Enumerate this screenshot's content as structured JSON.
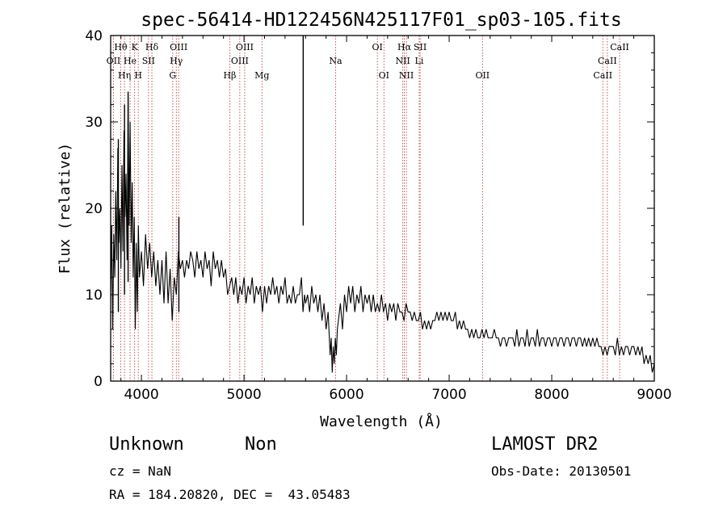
{
  "chart_data": {
    "type": "line",
    "title": "spec-56414-HD122456N425117F01_sp03-105.fits",
    "xlabel": "Wavelength (Å)",
    "ylabel": "Flux (relative)",
    "xlim": [
      3700,
      9000
    ],
    "ylim": [
      0,
      40
    ],
    "xticks": [
      4000,
      5000,
      6000,
      7000,
      8000,
      9000
    ],
    "yticks": [
      0,
      10,
      20,
      30,
      40
    ],
    "grid": false,
    "line_color": "#000000",
    "marker_color": "#b03030",
    "anchors": [
      [
        3700,
        10
      ],
      [
        3710,
        18
      ],
      [
        3720,
        6
      ],
      [
        3730,
        17
      ],
      [
        3740,
        12
      ],
      [
        3750,
        22
      ],
      [
        3760,
        14
      ],
      [
        3770,
        27
      ],
      [
        3780,
        16
      ],
      [
        3790,
        20
      ],
      [
        3800,
        13
      ],
      [
        3810,
        25
      ],
      [
        3820,
        15
      ],
      [
        3830,
        29
      ],
      [
        3840,
        19
      ],
      [
        3850,
        24
      ],
      [
        3860,
        14
      ],
      [
        3870,
        33
      ],
      [
        3880,
        18
      ],
      [
        3890,
        30
      ],
      [
        3900,
        16
      ],
      [
        3910,
        23
      ],
      [
        3920,
        12
      ],
      [
        3930,
        19
      ],
      [
        3940,
        6
      ],
      [
        3950,
        16
      ],
      [
        3960,
        8
      ],
      [
        3970,
        18
      ],
      [
        3980,
        12
      ],
      [
        4000,
        15
      ],
      [
        4020,
        11
      ],
      [
        4040,
        17
      ],
      [
        4060,
        13
      ],
      [
        4080,
        16
      ],
      [
        4100,
        12
      ],
      [
        4120,
        15
      ],
      [
        4140,
        11
      ],
      [
        4160,
        14
      ],
      [
        4180,
        10
      ],
      [
        4200,
        14
      ],
      [
        4220,
        9
      ],
      [
        4240,
        15
      ],
      [
        4260,
        9
      ],
      [
        4280,
        13
      ],
      [
        4300,
        7
      ],
      [
        4320,
        12
      ],
      [
        4340,
        10
      ],
      [
        4360,
        15
      ],
      [
        4380,
        13
      ],
      [
        4400,
        14
      ],
      [
        4420,
        12
      ],
      [
        4440,
        14
      ],
      [
        4460,
        13
      ],
      [
        4480,
        15
      ],
      [
        4500,
        14
      ],
      [
        4520,
        12
      ],
      [
        4540,
        15
      ],
      [
        4560,
        13
      ],
      [
        4580,
        14
      ],
      [
        4600,
        12
      ],
      [
        4620,
        15
      ],
      [
        4640,
        13
      ],
      [
        4660,
        14
      ],
      [
        4680,
        11
      ],
      [
        4700,
        15
      ],
      [
        4720,
        13
      ],
      [
        4740,
        14
      ],
      [
        4760,
        12
      ],
      [
        4780,
        14
      ],
      [
        4800,
        12
      ],
      [
        4820,
        13
      ],
      [
        4840,
        10
      ],
      [
        4860,
        11
      ],
      [
        4880,
        12
      ],
      [
        4900,
        10
      ],
      [
        4920,
        12
      ],
      [
        4940,
        9
      ],
      [
        4960,
        11
      ],
      [
        4980,
        10
      ],
      [
        5000,
        12
      ],
      [
        5020,
        9
      ],
      [
        5040,
        11
      ],
      [
        5060,
        10
      ],
      [
        5080,
        12
      ],
      [
        5100,
        9
      ],
      [
        5120,
        11
      ],
      [
        5140,
        10
      ],
      [
        5160,
        11
      ],
      [
        5180,
        8
      ],
      [
        5200,
        11
      ],
      [
        5220,
        9
      ],
      [
        5240,
        11
      ],
      [
        5260,
        10
      ],
      [
        5280,
        12
      ],
      [
        5300,
        10
      ],
      [
        5320,
        11
      ],
      [
        5340,
        9
      ],
      [
        5360,
        11
      ],
      [
        5380,
        10
      ],
      [
        5400,
        12
      ],
      [
        5420,
        9
      ],
      [
        5440,
        10
      ],
      [
        5460,
        9
      ],
      [
        5480,
        11
      ],
      [
        5500,
        9
      ],
      [
        5520,
        10
      ],
      [
        5540,
        10
      ],
      [
        5560,
        12
      ],
      [
        5575,
        8
      ],
      [
        5590,
        10
      ],
      [
        5600,
        9
      ],
      [
        5620,
        10
      ],
      [
        5640,
        8
      ],
      [
        5660,
        11
      ],
      [
        5680,
        9
      ],
      [
        5700,
        10
      ],
      [
        5720,
        8
      ],
      [
        5740,
        10
      ],
      [
        5760,
        7
      ],
      [
        5780,
        9
      ],
      [
        5800,
        6
      ],
      [
        5820,
        8
      ],
      [
        5840,
        3
      ],
      [
        5850,
        5
      ],
      [
        5860,
        1
      ],
      [
        5870,
        4
      ],
      [
        5880,
        2
      ],
      [
        5890,
        5
      ],
      [
        5900,
        3
      ],
      [
        5910,
        6
      ],
      [
        5920,
        7
      ],
      [
        5940,
        9
      ],
      [
        5960,
        6
      ],
      [
        5980,
        10
      ],
      [
        6000,
        8
      ],
      [
        6020,
        11
      ],
      [
        6040,
        9
      ],
      [
        6060,
        11
      ],
      [
        6080,
        8
      ],
      [
        6100,
        10
      ],
      [
        6120,
        9
      ],
      [
        6140,
        11
      ],
      [
        6160,
        8
      ],
      [
        6180,
        10
      ],
      [
        6200,
        9
      ],
      [
        6220,
        10
      ],
      [
        6240,
        8
      ],
      [
        6260,
        10
      ],
      [
        6280,
        8
      ],
      [
        6300,
        9
      ],
      [
        6320,
        8
      ],
      [
        6340,
        10
      ],
      [
        6360,
        8
      ],
      [
        6380,
        9
      ],
      [
        6400,
        7
      ],
      [
        6420,
        9
      ],
      [
        6440,
        8
      ],
      [
        6460,
        9
      ],
      [
        6480,
        7
      ],
      [
        6500,
        9
      ],
      [
        6520,
        8
      ],
      [
        6540,
        8
      ],
      [
        6560,
        7
      ],
      [
        6580,
        9
      ],
      [
        6600,
        8
      ],
      [
        6620,
        8
      ],
      [
        6640,
        7
      ],
      [
        6660,
        8
      ],
      [
        6680,
        7
      ],
      [
        6700,
        7
      ],
      [
        6720,
        8
      ],
      [
        6740,
        6
      ],
      [
        6760,
        7
      ],
      [
        6780,
        6
      ],
      [
        6800,
        7
      ],
      [
        6820,
        6
      ],
      [
        6840,
        7
      ],
      [
        6860,
        7
      ],
      [
        6880,
        8
      ],
      [
        6900,
        7
      ],
      [
        6920,
        8
      ],
      [
        6940,
        7
      ],
      [
        6960,
        8
      ],
      [
        6980,
        7
      ],
      [
        7000,
        8
      ],
      [
        7020,
        7
      ],
      [
        7040,
        7
      ],
      [
        7060,
        8
      ],
      [
        7080,
        6
      ],
      [
        7100,
        7
      ],
      [
        7120,
        6
      ],
      [
        7140,
        7
      ],
      [
        7160,
        6
      ],
      [
        7180,
        6
      ],
      [
        7200,
        5
      ],
      [
        7220,
        6
      ],
      [
        7240,
        5
      ],
      [
        7260,
        6
      ],
      [
        7280,
        5
      ],
      [
        7300,
        5
      ],
      [
        7320,
        6
      ],
      [
        7340,
        5
      ],
      [
        7360,
        6
      ],
      [
        7380,
        5
      ],
      [
        7400,
        5
      ],
      [
        7420,
        5
      ],
      [
        7440,
        6
      ],
      [
        7460,
        5
      ],
      [
        7480,
        5
      ],
      [
        7500,
        4
      ],
      [
        7520,
        5
      ],
      [
        7540,
        5
      ],
      [
        7560,
        4
      ],
      [
        7580,
        5
      ],
      [
        7600,
        5
      ],
      [
        7620,
        5
      ],
      [
        7640,
        4
      ],
      [
        7660,
        6
      ],
      [
        7680,
        4
      ],
      [
        7700,
        5
      ],
      [
        7720,
        5
      ],
      [
        7740,
        4
      ],
      [
        7760,
        6
      ],
      [
        7780,
        4
      ],
      [
        7800,
        5
      ],
      [
        7820,
        5
      ],
      [
        7840,
        4
      ],
      [
        7860,
        6
      ],
      [
        7880,
        4
      ],
      [
        7900,
        5
      ],
      [
        7920,
        5
      ],
      [
        7940,
        4
      ],
      [
        7960,
        5
      ],
      [
        7980,
        5
      ],
      [
        8000,
        4
      ],
      [
        8020,
        5
      ],
      [
        8040,
        5
      ],
      [
        8060,
        4
      ],
      [
        8080,
        5
      ],
      [
        8100,
        5
      ],
      [
        8120,
        4
      ],
      [
        8140,
        5
      ],
      [
        8160,
        5
      ],
      [
        8180,
        4
      ],
      [
        8200,
        5
      ],
      [
        8220,
        5
      ],
      [
        8240,
        4
      ],
      [
        8260,
        5
      ],
      [
        8280,
        5
      ],
      [
        8300,
        4
      ],
      [
        8320,
        5
      ],
      [
        8340,
        4
      ],
      [
        8360,
        5
      ],
      [
        8380,
        4
      ],
      [
        8400,
        5
      ],
      [
        8420,
        4
      ],
      [
        8440,
        5
      ],
      [
        8460,
        4
      ],
      [
        8480,
        4
      ],
      [
        8500,
        3
      ],
      [
        8520,
        4
      ],
      [
        8540,
        3
      ],
      [
        8560,
        4
      ],
      [
        8580,
        4
      ],
      [
        8600,
        4
      ],
      [
        8620,
        3
      ],
      [
        8640,
        5
      ],
      [
        8660,
        3
      ],
      [
        8680,
        4
      ],
      [
        8700,
        3
      ],
      [
        8720,
        4
      ],
      [
        8740,
        4
      ],
      [
        8760,
        3
      ],
      [
        8780,
        4
      ],
      [
        8800,
        4
      ],
      [
        8820,
        3
      ],
      [
        8840,
        4
      ],
      [
        8860,
        3
      ],
      [
        8880,
        4
      ],
      [
        8900,
        2
      ],
      [
        8920,
        3
      ],
      [
        8940,
        2
      ],
      [
        8960,
        3
      ],
      [
        8980,
        1
      ],
      [
        9000,
        2
      ]
    ],
    "spikes": [
      {
        "x": 3775,
        "y": 28
      },
      {
        "x": 3835,
        "y": 32
      },
      {
        "x": 3870,
        "y": 33.5
      },
      {
        "x": 4365,
        "y": 19
      },
      {
        "x": 5577,
        "y": 40
      }
    ],
    "lines": [
      {
        "label": "Hθ",
        "x": 3798,
        "row": 0
      },
      {
        "label": "K",
        "x": 3934,
        "row": 0
      },
      {
        "label": "Hδ",
        "x": 4102,
        "row": 0
      },
      {
        "label": "OIII",
        "x": 4363,
        "row": 0
      },
      {
        "label": "OIII",
        "x": 5007,
        "row": 0
      },
      {
        "label": "OI",
        "x": 6300,
        "row": 0
      },
      {
        "label": "Hα",
        "x": 6563,
        "row": 0
      },
      {
        "label": "SII",
        "x": 6717,
        "row": 0
      },
      {
        "label": "CaII",
        "x": 8662,
        "row": 0
      },
      {
        "label": "OII",
        "x": 3727,
        "row": 1
      },
      {
        "label": "He",
        "x": 3889,
        "row": 1
      },
      {
        "label": "SII",
        "x": 4069,
        "row": 1
      },
      {
        "label": "Hγ",
        "x": 4340,
        "row": 1
      },
      {
        "label": "OIII",
        "x": 4959,
        "row": 1
      },
      {
        "label": "Na",
        "x": 5893,
        "row": 1
      },
      {
        "label": "NII",
        "x": 6548,
        "row": 1
      },
      {
        "label": "Li",
        "x": 6708,
        "row": 1
      },
      {
        "label": "CaII",
        "x": 8542,
        "row": 1
      },
      {
        "label": "Hη",
        "x": 3835,
        "row": 2
      },
      {
        "label": "H",
        "x": 3969,
        "row": 2
      },
      {
        "label": "G",
        "x": 4305,
        "row": 2
      },
      {
        "label": "Hβ",
        "x": 4861,
        "row": 2
      },
      {
        "label": "Mg",
        "x": 5175,
        "row": 2
      },
      {
        "label": "OI",
        "x": 6364,
        "row": 2
      },
      {
        "label": "NII",
        "x": 6583,
        "row": 2
      },
      {
        "label": "OII",
        "x": 7325,
        "row": 2
      },
      {
        "label": "CaII",
        "x": 8498,
        "row": 2
      }
    ]
  },
  "info": {
    "object_class": "Unknown",
    "object_subclass": "Non",
    "survey": "LAMOST DR2",
    "redshift": "cz = NaN",
    "obs_date": "Obs-Date: 20130501",
    "coords": "RA = 184.20820, DEC =  43.05483"
  }
}
